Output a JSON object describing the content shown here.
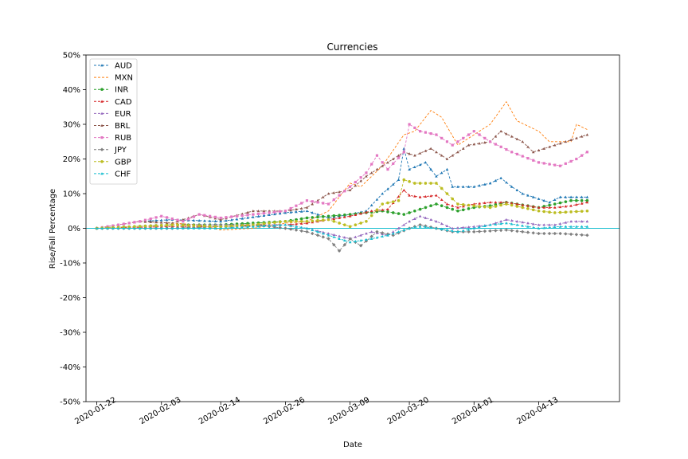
{
  "chart_data": {
    "type": "line",
    "title": "Currencies",
    "xlabel": "Date",
    "ylabel": "Rise/Fall Percentage",
    "ylim": [
      -50,
      50
    ],
    "yticks": [
      -50,
      -40,
      -30,
      -20,
      -10,
      0,
      10,
      20,
      30,
      40,
      50
    ],
    "ytick_labels": [
      "-50%",
      "-40%",
      "-30%",
      "-20%",
      "-10%",
      "0%",
      "10%",
      "20%",
      "30%",
      "40%",
      "50%"
    ],
    "x_start": "2020-01-22",
    "x_end": "2020-04-22",
    "xlim": [
      "2020-01-20",
      "2020-04-28"
    ],
    "xtick_labels": [
      "2020-01-22",
      "2020-02-03",
      "2020-02-14",
      "2020-02-26",
      "2020-03-09",
      "2020-03-20",
      "2020-04-01",
      "2020-04-13"
    ],
    "baseline": 0,
    "baseline_color": "#17becf",
    "legend_position": "upper-left",
    "series": [
      {
        "name": "AUD",
        "color": "#1f77b4",
        "marker": "tri",
        "knots": [
          [
            "2020-01-22",
            0
          ],
          [
            "2020-01-30",
            2
          ],
          [
            "2020-02-05",
            2.5
          ],
          [
            "2020-02-14",
            2
          ],
          [
            "2020-02-26",
            4.5
          ],
          [
            "2020-03-01",
            5
          ],
          [
            "2020-03-05",
            3
          ],
          [
            "2020-03-09",
            4
          ],
          [
            "2020-03-12",
            5
          ],
          [
            "2020-03-15",
            10
          ],
          [
            "2020-03-18",
            14
          ],
          [
            "2020-03-19",
            23
          ],
          [
            "2020-03-20",
            17
          ],
          [
            "2020-03-23",
            19
          ],
          [
            "2020-03-25",
            15
          ],
          [
            "2020-03-27",
            17
          ],
          [
            "2020-03-28",
            12
          ],
          [
            "2020-04-01",
            12
          ],
          [
            "2020-04-04",
            13
          ],
          [
            "2020-04-06",
            14.5
          ],
          [
            "2020-04-08",
            12
          ],
          [
            "2020-04-10",
            10
          ],
          [
            "2020-04-13",
            8.5
          ],
          [
            "2020-04-15",
            7.5
          ],
          [
            "2020-04-17",
            9
          ],
          [
            "2020-04-22",
            9
          ]
        ]
      },
      {
        "name": "MXN",
        "color": "#ff7f0e",
        "marker": "none",
        "knots": [
          [
            "2020-01-22",
            0
          ],
          [
            "2020-01-30",
            2
          ],
          [
            "2020-02-05",
            1.5
          ],
          [
            "2020-02-10",
            1
          ],
          [
            "2020-02-14",
            -0.5
          ],
          [
            "2020-02-20",
            0
          ],
          [
            "2020-02-26",
            1.5
          ],
          [
            "2020-03-01",
            2
          ],
          [
            "2020-03-05",
            5
          ],
          [
            "2020-03-09",
            13
          ],
          [
            "2020-03-11",
            12
          ],
          [
            "2020-03-15",
            18
          ],
          [
            "2020-03-19",
            27
          ],
          [
            "2020-03-21",
            28
          ],
          [
            "2020-03-24",
            34
          ],
          [
            "2020-03-26",
            32
          ],
          [
            "2020-03-29",
            24
          ],
          [
            "2020-04-01",
            27
          ],
          [
            "2020-04-04",
            30
          ],
          [
            "2020-04-07",
            36.5
          ],
          [
            "2020-04-09",
            31
          ],
          [
            "2020-04-13",
            28
          ],
          [
            "2020-04-15",
            25
          ],
          [
            "2020-04-19",
            25
          ],
          [
            "2020-04-20",
            30
          ],
          [
            "2020-04-22",
            28.5
          ]
        ]
      },
      {
        "name": "INR",
        "color": "#2ca02c",
        "marker": "circle",
        "knots": [
          [
            "2020-01-22",
            0
          ],
          [
            "2020-02-05",
            1
          ],
          [
            "2020-02-14",
            1
          ],
          [
            "2020-02-26",
            2
          ],
          [
            "2020-03-01",
            3
          ],
          [
            "2020-03-09",
            4
          ],
          [
            "2020-03-15",
            5
          ],
          [
            "2020-03-19",
            4
          ],
          [
            "2020-03-22",
            5.5
          ],
          [
            "2020-03-25",
            7
          ],
          [
            "2020-03-27",
            6
          ],
          [
            "2020-03-29",
            5
          ],
          [
            "2020-04-01",
            6
          ],
          [
            "2020-04-04",
            6.5
          ],
          [
            "2020-04-07",
            7.5
          ],
          [
            "2020-04-13",
            6
          ],
          [
            "2020-04-16",
            7
          ],
          [
            "2020-04-19",
            8
          ],
          [
            "2020-04-22",
            8
          ]
        ]
      },
      {
        "name": "CAD",
        "color": "#d62728",
        "marker": "tri",
        "knots": [
          [
            "2020-01-22",
            0
          ],
          [
            "2020-02-05",
            0.5
          ],
          [
            "2020-02-14",
            0.5
          ],
          [
            "2020-02-26",
            1
          ],
          [
            "2020-03-01",
            1.5
          ],
          [
            "2020-03-09",
            3.5
          ],
          [
            "2020-03-13",
            5
          ],
          [
            "2020-03-16",
            5.5
          ],
          [
            "2020-03-19",
            11
          ],
          [
            "2020-03-20",
            9.5
          ],
          [
            "2020-03-22",
            9
          ],
          [
            "2020-03-25",
            9.5
          ],
          [
            "2020-03-27",
            7
          ],
          [
            "2020-03-29",
            6
          ],
          [
            "2020-04-01",
            7
          ],
          [
            "2020-04-04",
            7.5
          ],
          [
            "2020-04-07",
            7.5
          ],
          [
            "2020-04-13",
            6
          ],
          [
            "2020-04-16",
            6
          ],
          [
            "2020-04-19",
            6.5
          ],
          [
            "2020-04-22",
            7.5
          ]
        ]
      },
      {
        "name": "EUR",
        "color": "#9467bd",
        "marker": "tri",
        "knots": [
          [
            "2020-01-22",
            0
          ],
          [
            "2020-02-05",
            1
          ],
          [
            "2020-02-14",
            1
          ],
          [
            "2020-02-26",
            1
          ],
          [
            "2020-03-01",
            0
          ],
          [
            "2020-03-09",
            -3
          ],
          [
            "2020-03-13",
            -1
          ],
          [
            "2020-03-16",
            -2
          ],
          [
            "2020-03-20",
            2
          ],
          [
            "2020-03-22",
            3.5
          ],
          [
            "2020-03-25",
            2
          ],
          [
            "2020-03-28",
            0
          ],
          [
            "2020-04-01",
            0.5
          ],
          [
            "2020-04-04",
            1
          ],
          [
            "2020-04-07",
            2.5
          ],
          [
            "2020-04-13",
            1
          ],
          [
            "2020-04-16",
            1
          ],
          [
            "2020-04-19",
            2
          ],
          [
            "2020-04-22",
            2
          ]
        ]
      },
      {
        "name": "BRL",
        "color": "#8c564b",
        "marker": "tri",
        "knots": [
          [
            "2020-01-22",
            0
          ],
          [
            "2020-01-30",
            2
          ],
          [
            "2020-02-05",
            1.5
          ],
          [
            "2020-02-10",
            4
          ],
          [
            "2020-02-14",
            2.5
          ],
          [
            "2020-02-20",
            5
          ],
          [
            "2020-02-26",
            5
          ],
          [
            "2020-03-01",
            6
          ],
          [
            "2020-03-05",
            10
          ],
          [
            "2020-03-09",
            11
          ],
          [
            "2020-03-12",
            15
          ],
          [
            "2020-03-15",
            18
          ],
          [
            "2020-03-18",
            21
          ],
          [
            "2020-03-19",
            22
          ],
          [
            "2020-03-21",
            21
          ],
          [
            "2020-03-24",
            23
          ],
          [
            "2020-03-27",
            20
          ],
          [
            "2020-03-31",
            24
          ],
          [
            "2020-04-04",
            25
          ],
          [
            "2020-04-06",
            28
          ],
          [
            "2020-04-10",
            25
          ],
          [
            "2020-04-12",
            22
          ],
          [
            "2020-04-16",
            24
          ],
          [
            "2020-04-18",
            25
          ],
          [
            "2020-04-22",
            27
          ]
        ]
      },
      {
        "name": "RUB",
        "color": "#e377c2",
        "marker": "square",
        "knots": [
          [
            "2020-01-22",
            0
          ],
          [
            "2020-01-30",
            2
          ],
          [
            "2020-02-03",
            3.5
          ],
          [
            "2020-02-07",
            2
          ],
          [
            "2020-02-10",
            4
          ],
          [
            "2020-02-14",
            3
          ],
          [
            "2020-02-20",
            4
          ],
          [
            "2020-02-26",
            5
          ],
          [
            "2020-03-01",
            8
          ],
          [
            "2020-03-05",
            7
          ],
          [
            "2020-03-09",
            12
          ],
          [
            "2020-03-12",
            16
          ],
          [
            "2020-03-14",
            21
          ],
          [
            "2020-03-16",
            17
          ],
          [
            "2020-03-19",
            22
          ],
          [
            "2020-03-20",
            30
          ],
          [
            "2020-03-22",
            28
          ],
          [
            "2020-03-25",
            27
          ],
          [
            "2020-03-28",
            24
          ],
          [
            "2020-04-01",
            28
          ],
          [
            "2020-04-04",
            25
          ],
          [
            "2020-04-08",
            22
          ],
          [
            "2020-04-13",
            19
          ],
          [
            "2020-04-17",
            18
          ],
          [
            "2020-04-20",
            20
          ],
          [
            "2020-04-22",
            22
          ]
        ]
      },
      {
        "name": "JPY",
        "color": "#7f7f7f",
        "marker": "diamond",
        "knots": [
          [
            "2020-01-22",
            0
          ],
          [
            "2020-02-05",
            0
          ],
          [
            "2020-02-14",
            0.5
          ],
          [
            "2020-02-20",
            1
          ],
          [
            "2020-02-26",
            0
          ],
          [
            "2020-03-01",
            -1
          ],
          [
            "2020-03-05",
            -3
          ],
          [
            "2020-03-07",
            -6.5
          ],
          [
            "2020-03-09",
            -3
          ],
          [
            "2020-03-11",
            -5
          ],
          [
            "2020-03-14",
            -1
          ],
          [
            "2020-03-17",
            -2
          ],
          [
            "2020-03-20",
            0
          ],
          [
            "2020-03-22",
            1
          ],
          [
            "2020-03-25",
            0
          ],
          [
            "2020-03-28",
            -1
          ],
          [
            "2020-04-01",
            -1
          ],
          [
            "2020-04-07",
            -0.5
          ],
          [
            "2020-04-13",
            -1.5
          ],
          [
            "2020-04-17",
            -1.5
          ],
          [
            "2020-04-22",
            -2
          ]
        ]
      },
      {
        "name": "GBP",
        "color": "#bcbd22",
        "marker": "circle",
        "knots": [
          [
            "2020-01-22",
            0
          ],
          [
            "2020-02-05",
            1
          ],
          [
            "2020-02-14",
            0.5
          ],
          [
            "2020-02-20",
            1
          ],
          [
            "2020-02-26",
            2
          ],
          [
            "2020-03-01",
            2
          ],
          [
            "2020-03-05",
            2.5
          ],
          [
            "2020-03-09",
            0.5
          ],
          [
            "2020-03-12",
            2
          ],
          [
            "2020-03-15",
            7
          ],
          [
            "2020-03-18",
            8
          ],
          [
            "2020-03-19",
            14
          ],
          [
            "2020-03-21",
            13
          ],
          [
            "2020-03-25",
            13
          ],
          [
            "2020-03-27",
            10
          ],
          [
            "2020-03-29",
            7
          ],
          [
            "2020-04-01",
            6.5
          ],
          [
            "2020-04-04",
            6
          ],
          [
            "2020-04-07",
            7
          ],
          [
            "2020-04-13",
            5
          ],
          [
            "2020-04-16",
            4.5
          ],
          [
            "2020-04-22",
            5
          ]
        ]
      },
      {
        "name": "CHF",
        "color": "#17becf",
        "marker": "tri",
        "knots": [
          [
            "2020-01-22",
            0
          ],
          [
            "2020-02-05",
            0
          ],
          [
            "2020-02-14",
            0
          ],
          [
            "2020-02-26",
            1
          ],
          [
            "2020-03-01",
            0
          ],
          [
            "2020-03-05",
            -2
          ],
          [
            "2020-03-09",
            -4
          ],
          [
            "2020-03-13",
            -3
          ],
          [
            "2020-03-16",
            -2
          ],
          [
            "2020-03-20",
            0
          ],
          [
            "2020-03-22",
            0.5
          ],
          [
            "2020-03-25",
            0
          ],
          [
            "2020-03-29",
            -1
          ],
          [
            "2020-04-01",
            0
          ],
          [
            "2020-04-04",
            1
          ],
          [
            "2020-04-07",
            1.5
          ],
          [
            "2020-04-13",
            0
          ],
          [
            "2020-04-17",
            0.5
          ],
          [
            "2020-04-22",
            0.5
          ]
        ]
      }
    ]
  }
}
